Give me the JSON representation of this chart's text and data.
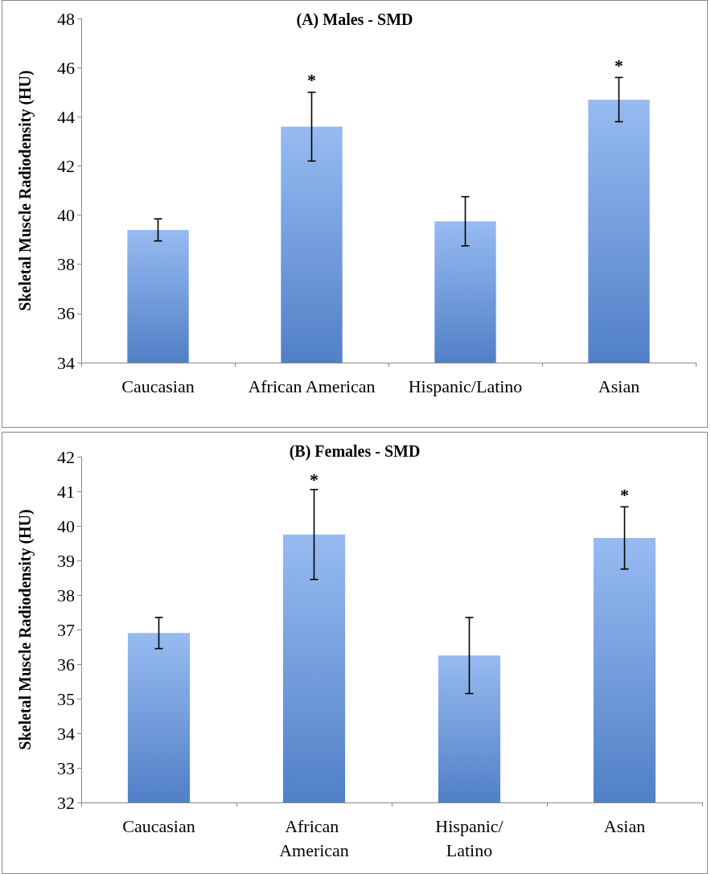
{
  "chart_data": [
    {
      "type": "bar",
      "title": "(A) Males - SMD",
      "ylabel": "Skeletal Muscle Radiodensity (HU)",
      "categories": [
        "Caucasian",
        "African American",
        "Hispanic/Latino",
        "Asian"
      ],
      "values": [
        39.4,
        43.6,
        39.75,
        44.7
      ],
      "errors": [
        0.45,
        1.4,
        1.0,
        0.9
      ],
      "color": "#5f97ea",
      "ylim": [
        34,
        48
      ],
      "yticks": [
        34,
        36,
        38,
        40,
        42,
        44,
        46,
        48
      ],
      "grid": false,
      "annotations": [
        {
          "text": "*",
          "x": "African American",
          "y": 45.0
        },
        {
          "text": "*",
          "x": "Asian",
          "y": 45.6
        }
      ]
    },
    {
      "type": "bar",
      "title": "(B) Females - SMD",
      "ylabel": "Skeletal Muscle Radiodensity (HU)",
      "categories": [
        "Caucasian",
        "African American",
        "Hispanic/Latino",
        "Asian"
      ],
      "values": [
        36.9,
        39.75,
        36.25,
        39.65
      ],
      "errors": [
        0.45,
        1.3,
        1.1,
        0.9
      ],
      "color": "#5f97ea",
      "ylim": [
        32,
        42
      ],
      "yticks": [
        32,
        33,
        34,
        35,
        36,
        37,
        38,
        39,
        40,
        41,
        42
      ],
      "grid": false,
      "annotations": [
        {
          "text": "*",
          "x": "African American",
          "y": 41.0
        },
        {
          "text": "*",
          "x": "Asian",
          "y": 40.55
        }
      ]
    }
  ]
}
